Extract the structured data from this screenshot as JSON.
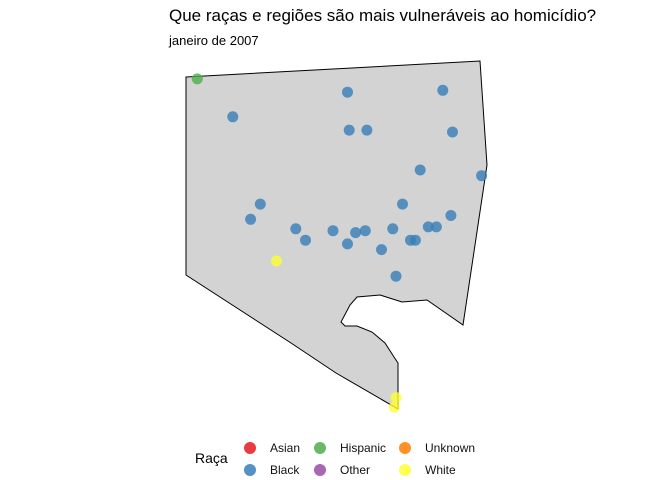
{
  "chart_data": {
    "type": "scatter",
    "title": "Que raças e regiões são mais vulneráveis ao homicídio?",
    "subtitle": "janeiro de 2007",
    "legend": {
      "title": "Raça",
      "placement": "bottom",
      "entries": [
        {
          "name": "Asian",
          "color": "#e41a1c"
        },
        {
          "name": "Black",
          "color": "#377eb8"
        },
        {
          "name": "Hispanic",
          "color": "#4daf4a"
        },
        {
          "name": "Other",
          "color": "#984ea3"
        },
        {
          "name": "Unknown",
          "color": "#ff7f00"
        },
        {
          "name": "White",
          "color": "#ffff33"
        }
      ]
    },
    "grid": false,
    "series": [
      {
        "name": "Black",
        "color": "#377eb8",
        "points": [
          [
            -76.682,
            39.351
          ],
          [
            -76.611,
            39.364
          ],
          [
            -76.599,
            39.344
          ],
          [
            -76.61,
            39.344
          ],
          [
            -76.552,
            39.365
          ],
          [
            -76.546,
            39.343
          ],
          [
            -76.528,
            39.32
          ],
          [
            -76.665,
            39.305
          ],
          [
            -76.671,
            39.297
          ],
          [
            -76.643,
            39.292
          ],
          [
            -76.637,
            39.286
          ],
          [
            -76.62,
            39.291
          ],
          [
            -76.606,
            39.29
          ],
          [
            -76.6,
            39.291
          ],
          [
            -76.583,
            39.292
          ],
          [
            -76.59,
            39.281
          ],
          [
            -76.611,
            39.284
          ],
          [
            -76.577,
            39.305
          ],
          [
            -76.566,
            39.323
          ],
          [
            -76.572,
            39.286
          ],
          [
            -76.569,
            39.286
          ],
          [
            -76.561,
            39.293
          ],
          [
            -76.556,
            39.293
          ],
          [
            -76.547,
            39.299
          ],
          [
            -76.581,
            39.267
          ]
        ]
      },
      {
        "name": "Hispanic",
        "color": "#4daf4a",
        "points": [
          [
            -76.704,
            39.371
          ]
        ]
      },
      {
        "name": "White",
        "color": "#ffff33",
        "points": [
          [
            -76.655,
            39.275
          ],
          [
            -76.581,
            39.203
          ],
          [
            -76.582,
            39.198
          ]
        ]
      }
    ]
  }
}
